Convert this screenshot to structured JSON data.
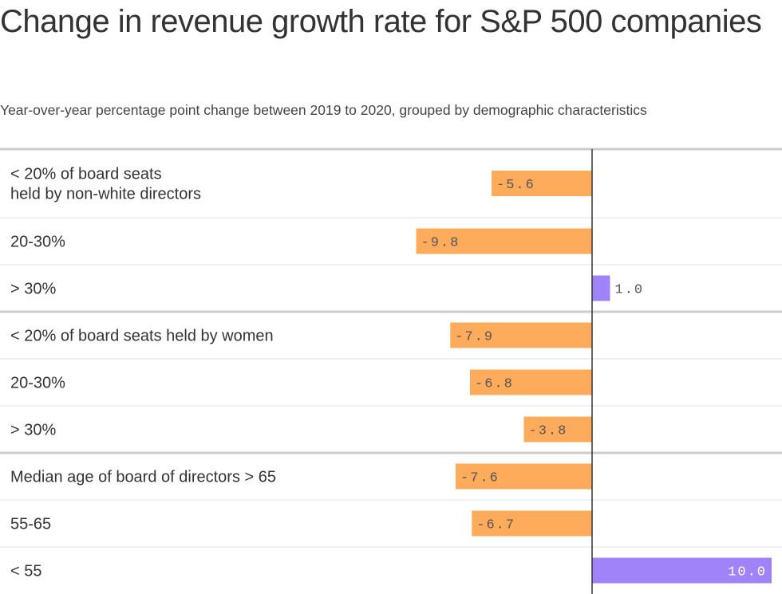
{
  "title": "Change in revenue growth rate for S&P 500 companies",
  "subtitle": "Year-over-year percentage point change between 2019 to 2020, grouped by demographic characteristics",
  "colors": {
    "negative": "#FFAB5C",
    "positive": "#A083F8",
    "axis": "#333333",
    "separator": "#cccccc",
    "row_divider": "#e3e3e3"
  },
  "chart_data": {
    "type": "bar",
    "orientation": "horizontal",
    "title": "Change in revenue growth rate for S&P 500 companies",
    "subtitle": "Year-over-year percentage point change between 2019 to 2020, grouped by demographic characteristics",
    "groups": [
      {
        "rows": [
          {
            "label": [
              "< 20% of board seats",
              "held by non-white directors"
            ],
            "value": -5.6,
            "display": "-5.6"
          },
          {
            "label": [
              "20-30%"
            ],
            "value": -9.8,
            "display": "-9.8"
          },
          {
            "label": [
              "> 30%"
            ],
            "value": 1.0,
            "display": "1.0"
          }
        ]
      },
      {
        "rows": [
          {
            "label": [
              "< 20% of board seats held by women"
            ],
            "value": -7.9,
            "display": "-7.9"
          },
          {
            "label": [
              "20-30%"
            ],
            "value": -6.8,
            "display": "-6.8"
          },
          {
            "label": [
              "> 30%"
            ],
            "value": -3.8,
            "display": "-3.8"
          }
        ]
      },
      {
        "rows": [
          {
            "label": [
              "Median age of board of directors > 65"
            ],
            "value": -7.6,
            "display": "-7.6"
          },
          {
            "label": [
              "55-65"
            ],
            "value": -6.7,
            "display": "-6.7"
          },
          {
            "label": [
              "< 55"
            ],
            "value": 10.0,
            "display": "10.0"
          }
        ]
      }
    ]
  }
}
